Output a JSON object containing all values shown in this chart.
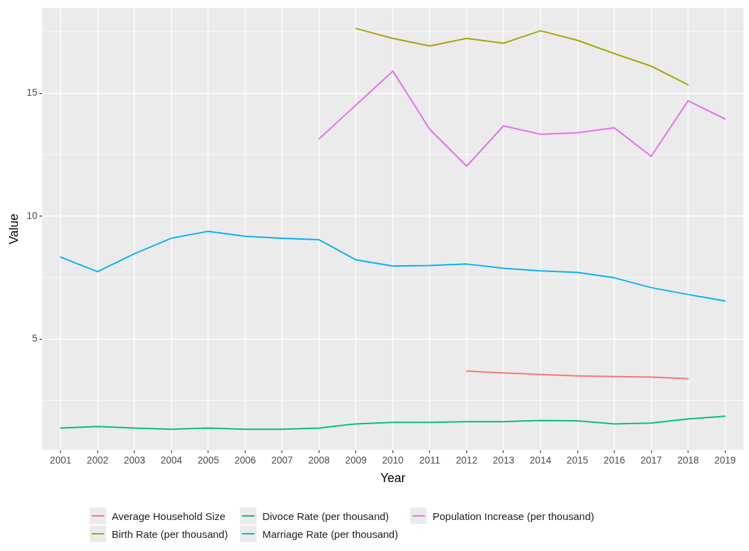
{
  "chart_data": {
    "type": "line",
    "xlabel": "Year",
    "ylabel": "Value",
    "categories": [
      "2001",
      "2002",
      "2003",
      "2004",
      "2005",
      "2006",
      "2007",
      "2008",
      "2009",
      "2010",
      "2011",
      "2012",
      "2013",
      "2014",
      "2015",
      "2016",
      "2017",
      "2018",
      "2019"
    ],
    "ylim": [
      0.48,
      18.47
    ],
    "yticks": [
      5,
      10,
      15
    ],
    "grid": true,
    "legend": "bottom",
    "marker": "none",
    "line_style": "solid",
    "series": [
      {
        "name": "Average Household Size",
        "color": "#f8766d",
        "values": [
          null,
          null,
          null,
          null,
          null,
          null,
          null,
          null,
          null,
          null,
          null,
          3.7,
          3.62,
          3.56,
          3.5,
          3.47,
          3.45,
          3.39,
          null
        ]
      },
      {
        "name": "Birth Rate (per thousand)",
        "color": "#a3a500",
        "values": [
          null,
          null,
          null,
          null,
          null,
          null,
          null,
          null,
          17.63,
          17.23,
          16.92,
          17.23,
          17.03,
          17.54,
          17.15,
          16.61,
          16.1,
          15.34,
          null
        ]
      },
      {
        "name": "Divoce Rate (per thousand)",
        "color": "#00bf7d",
        "values": [
          1.38,
          1.44,
          1.38,
          1.33,
          1.38,
          1.33,
          1.33,
          1.38,
          1.55,
          1.61,
          1.61,
          1.64,
          1.64,
          1.69,
          1.67,
          1.55,
          1.58,
          1.75,
          1.86
        ]
      },
      {
        "name": "Marriage Rate (per thousand)",
        "color": "#00b0f6",
        "values": [
          8.33,
          7.74,
          8.47,
          9.1,
          9.38,
          9.18,
          9.1,
          9.04,
          8.22,
          7.97,
          7.99,
          8.05,
          7.88,
          7.77,
          7.71,
          7.49,
          7.09,
          6.81,
          6.55
        ]
      },
      {
        "name": "Population Increase (per thousand)",
        "color": "#e76bf3",
        "values": [
          null,
          null,
          null,
          null,
          null,
          null,
          null,
          13.14,
          14.52,
          15.9,
          13.53,
          12.03,
          13.67,
          13.33,
          13.39,
          13.59,
          12.43,
          14.69,
          13.95
        ]
      }
    ]
  }
}
